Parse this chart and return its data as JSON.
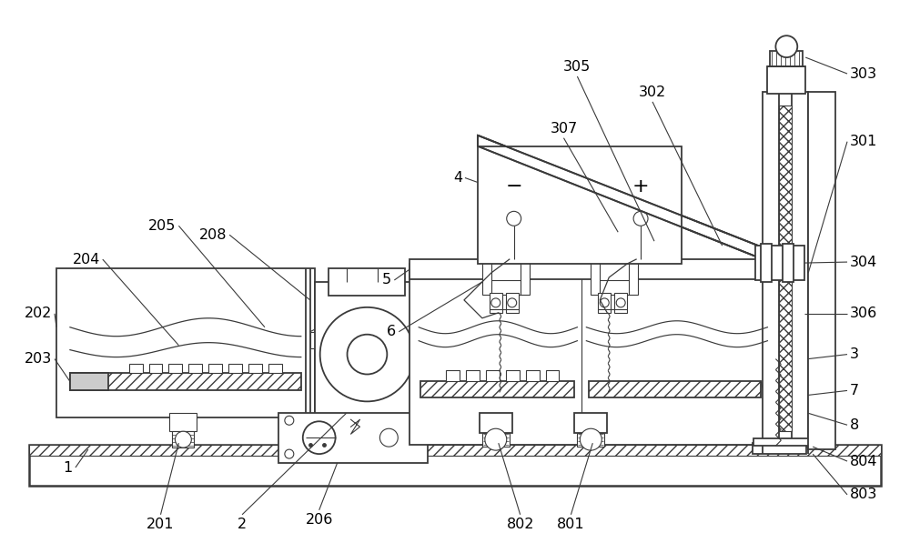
{
  "background_color": "#ffffff",
  "line_color": "#3a3a3a",
  "lw": 1.3,
  "lw_thin": 0.8,
  "lw_thick": 1.8,
  "figsize": [
    10.0,
    6.08
  ],
  "dpi": 100,
  "font_size": 11.5
}
